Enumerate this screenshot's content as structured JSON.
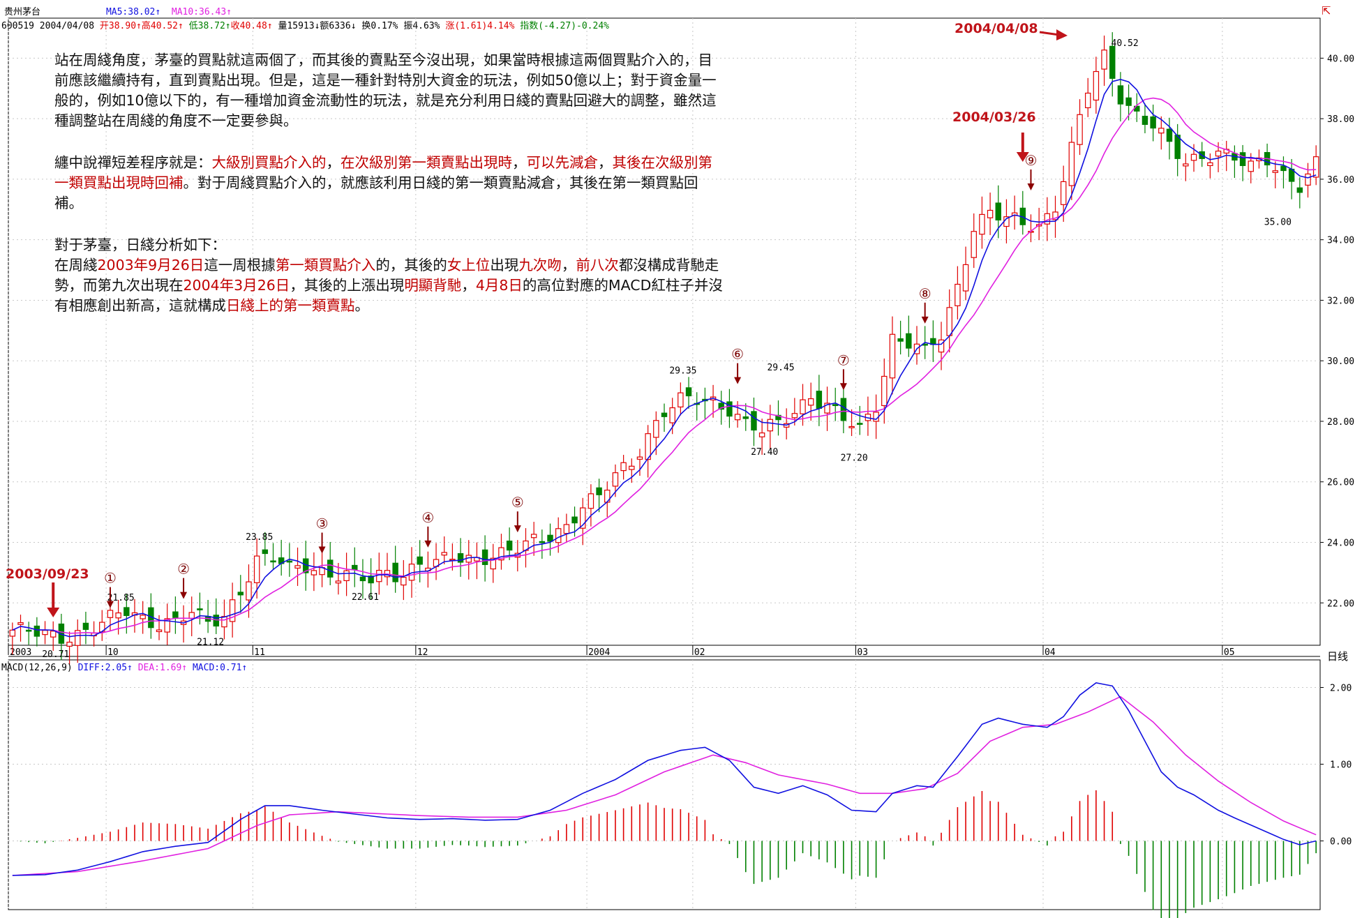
{
  "header": {
    "name": "贵州茅台",
    "ma5": "MA5:38.02↑",
    "ma10": "MA10:36.43↑",
    "code": "600519",
    "date": "2004/04/08",
    "open": "开38.90↑",
    "high": "高40.52↑",
    "low": "低38.72↑",
    "close": "收40.48↑",
    "vol": "量15913↓",
    "amount": "额6336↓",
    "turnover": "换0.17%",
    "amplitude": "振4.63%",
    "change": "涨(1.61)4.14%",
    "index": "指数(-4.27)-0.24%"
  },
  "macd_header": {
    "name": "MACD(12,26,9)",
    "diff": "DIFF:2.05↑",
    "dea": "DEA:1.69↑",
    "macd": "MACD:0.71↑"
  },
  "period_label": "日线",
  "notes": {
    "p1": "站在周綫角度，茅臺的買點就這兩個了，而其後的賣點至今沒出現，如果當時根據這兩個買點介入的，目前應該繼續持有，直到賣點出現。但是，這是一種針對特別大資金的玩法，例如50億以上；對于資金量一般的，例如10億以下的，有一種增加資金流動性的玩法，就是充分利用日綫的賣點回避大的調整，雖然這種調整站在周綫的角度不一定要參與。",
    "p2a": "纏中說禪短差程序就是：",
    "p2b": "大級別買點介入的",
    "p2c": "，",
    "p2d": "在次級別第一類賣點出現時",
    "p2e": "，",
    "p2f": "可以先減倉",
    "p2g": "，",
    "p2h": "其後在次級別第一類買點出現時回補",
    "p2i": "。對于周綫買點介入的，就應該利用日綫的第一類賣點減倉，其後在第一類買點回補。",
    "p3": "對于茅臺，日綫分析如下：",
    "p4a": "在周綫",
    "p4b": "2003年9月26日",
    "p4c": "這一周根據",
    "p4d": "第一類買點介入",
    "p4e": "的，其後的",
    "p4f": "女上位",
    "p4g": "出現",
    "p4h": "九次吻",
    "p4i": "，",
    "p4j": "前八次",
    "p4k": "都沒構成背馳走勢，而第九次出現在",
    "p4l": "2004年3月26日",
    "p4m": "，其後的上漲出現",
    "p4n": "明顯背馳",
    "p4o": "，",
    "p4p": "4月8日",
    "p4q": "的高位對應的MACD紅柱子并沒有相應創出新高，這就構成",
    "p4r": "日綫上的第一類賣點",
    "p4s": "。"
  },
  "annotations": {
    "d20030923": "2003/09/23",
    "d20040326": "2004/03/26",
    "d20040408": "2004/04/08"
  },
  "colors": {
    "up": "#e00000",
    "down": "#008000",
    "ma5": "#1010e0",
    "ma10": "#e020e0",
    "annotation": "#c0141a",
    "grid": "#c8c8c8"
  },
  "chart_data": [
    {
      "type": "candlestick",
      "y_ticks": [
        "40.00",
        "38.00",
        "36.00",
        "34.00",
        "32.00",
        "30.00",
        "28.00",
        "26.00",
        "24.00",
        "22.00"
      ],
      "ylim": [
        20.6,
        41.0
      ],
      "x_labels": [
        {
          "label": "2003",
          "index": 0
        },
        {
          "label": "10",
          "index": 12
        },
        {
          "label": "11",
          "index": 30
        },
        {
          "label": "12",
          "index": 50
        },
        {
          "label": "2004",
          "index": 71
        },
        {
          "label": "02",
          "index": 84
        },
        {
          "label": "03",
          "index": 104
        },
        {
          "label": "04",
          "index": 127
        },
        {
          "label": "05",
          "index": 149
        }
      ],
      "price_labels": [
        {
          "text": "20.71",
          "index": 5,
          "value": 20.71,
          "pos": "below"
        },
        {
          "text": "21.85",
          "index": 13,
          "value": 21.85,
          "pos": "above"
        },
        {
          "text": "21.12",
          "index": 24,
          "value": 21.12,
          "pos": "below"
        },
        {
          "text": "23.85",
          "index": 30,
          "value": 23.85,
          "pos": "above"
        },
        {
          "text": "22.61",
          "index": 43,
          "value": 22.61,
          "pos": "below"
        },
        {
          "text": "29.35",
          "index": 82,
          "value": 29.35,
          "pos": "above"
        },
        {
          "text": "27.40",
          "index": 92,
          "value": 27.4,
          "pos": "below"
        },
        {
          "text": "29.45",
          "index": 94,
          "value": 29.45,
          "pos": "above"
        },
        {
          "text": "27.20",
          "index": 103,
          "value": 27.2,
          "pos": "below"
        },
        {
          "text": "40.52",
          "index": 134,
          "value": 40.52,
          "pos": "right"
        },
        {
          "text": "35.00",
          "index": 155,
          "value": 35.0,
          "pos": "below"
        }
      ],
      "kisses": [
        {
          "label": "①",
          "index": 12,
          "value": 21.6
        },
        {
          "label": "②",
          "index": 21,
          "value": 21.9
        },
        {
          "label": "③",
          "index": 38,
          "value": 23.4
        },
        {
          "label": "④",
          "index": 51,
          "value": 23.6
        },
        {
          "label": "⑤",
          "index": 62,
          "value": 24.1
        },
        {
          "label": "⑥",
          "index": 89,
          "value": 29.0
        },
        {
          "label": "⑦",
          "index": 102,
          "value": 28.8
        },
        {
          "label": "⑧",
          "index": 112,
          "value": 31.0
        },
        {
          "label": "⑨",
          "index": 125,
          "value": 35.4
        }
      ],
      "keypoints": [
        [
          0,
          21.1
        ],
        [
          4,
          20.9
        ],
        [
          6,
          20.9
        ],
        [
          10,
          21.2
        ],
        [
          12,
          21.4
        ],
        [
          14,
          21.7
        ],
        [
          16,
          21.5
        ],
        [
          18,
          21.4
        ],
        [
          20,
          21.4
        ],
        [
          22,
          21.6
        ],
        [
          24,
          21.3
        ],
        [
          26,
          21.6
        ],
        [
          28,
          22.5
        ],
        [
          30,
          23.4
        ],
        [
          32,
          23.4
        ],
        [
          34,
          23.1
        ],
        [
          36,
          23.3
        ],
        [
          38,
          23.1
        ],
        [
          40,
          22.9
        ],
        [
          42,
          22.8
        ],
        [
          44,
          22.7
        ],
        [
          46,
          23.1
        ],
        [
          48,
          23.0
        ],
        [
          50,
          23.3
        ],
        [
          52,
          23.2
        ],
        [
          54,
          23.5
        ],
        [
          56,
          23.5
        ],
        [
          58,
          23.6
        ],
        [
          60,
          23.6
        ],
        [
          62,
          23.7
        ],
        [
          64,
          24.0
        ],
        [
          66,
          24.3
        ],
        [
          68,
          24.6
        ],
        [
          70,
          25.2
        ],
        [
          72,
          25.4
        ],
        [
          74,
          26.2
        ],
        [
          76,
          26.7
        ],
        [
          78,
          27.6
        ],
        [
          80,
          28.3
        ],
        [
          82,
          28.6
        ],
        [
          84,
          28.7
        ],
        [
          86,
          28.7
        ],
        [
          88,
          28.5
        ],
        [
          90,
          27.9
        ],
        [
          92,
          27.6
        ],
        [
          94,
          27.9
        ],
        [
          96,
          28.4
        ],
        [
          98,
          28.9
        ],
        [
          100,
          28.5
        ],
        [
          102,
          28.0
        ],
        [
          104,
          27.7
        ],
        [
          106,
          28.6
        ],
        [
          108,
          30.8
        ],
        [
          110,
          30.6
        ],
        [
          112,
          30.2
        ],
        [
          114,
          30.8
        ],
        [
          116,
          32.5
        ],
        [
          118,
          34.5
        ],
        [
          120,
          34.9
        ],
        [
          122,
          34.6
        ],
        [
          124,
          34.5
        ],
        [
          126,
          34.5
        ],
        [
          128,
          35.2
        ],
        [
          130,
          37.0
        ],
        [
          132,
          38.9
        ],
        [
          134,
          40.0
        ],
        [
          136,
          38.8
        ],
        [
          138,
          38.2
        ],
        [
          140,
          37.8
        ],
        [
          142,
          37.0
        ],
        [
          144,
          36.5
        ],
        [
          146,
          36.8
        ],
        [
          148,
          37.0
        ],
        [
          150,
          36.7
        ],
        [
          152,
          36.3
        ],
        [
          154,
          36.6
        ],
        [
          156,
          36.2
        ],
        [
          158,
          35.9
        ],
        [
          160,
          36.5
        ]
      ],
      "candles_count": 161
    },
    {
      "type": "line+bar",
      "name": "MACD(12,26,9)",
      "y_ticks": [
        "2.00",
        "1.00",
        "0.00"
      ],
      "ylim": [
        -0.95,
        2.25
      ],
      "diff_keypoints": [
        [
          0,
          -0.45
        ],
        [
          4,
          -0.44
        ],
        [
          8,
          -0.38
        ],
        [
          12,
          -0.27
        ],
        [
          16,
          -0.14
        ],
        [
          20,
          -0.07
        ],
        [
          24,
          -0.02
        ],
        [
          28,
          0.28
        ],
        [
          31,
          0.46
        ],
        [
          34,
          0.46
        ],
        [
          38,
          0.4
        ],
        [
          42,
          0.35
        ],
        [
          46,
          0.3
        ],
        [
          50,
          0.28
        ],
        [
          54,
          0.29
        ],
        [
          58,
          0.27
        ],
        [
          62,
          0.28
        ],
        [
          66,
          0.4
        ],
        [
          70,
          0.62
        ],
        [
          74,
          0.8
        ],
        [
          78,
          1.05
        ],
        [
          82,
          1.18
        ],
        [
          85,
          1.22
        ],
        [
          88,
          1.05
        ],
        [
          91,
          0.7
        ],
        [
          94,
          0.62
        ],
        [
          97,
          0.72
        ],
        [
          100,
          0.6
        ],
        [
          103,
          0.4
        ],
        [
          106,
          0.38
        ],
        [
          108,
          0.62
        ],
        [
          111,
          0.72
        ],
        [
          113,
          0.7
        ],
        [
          116,
          1.1
        ],
        [
          119,
          1.52
        ],
        [
          121,
          1.6
        ],
        [
          124,
          1.52
        ],
        [
          127,
          1.48
        ],
        [
          129,
          1.62
        ],
        [
          131,
          1.9
        ],
        [
          133,
          2.06
        ],
        [
          135,
          2.02
        ],
        [
          137,
          1.7
        ],
        [
          139,
          1.3
        ],
        [
          141,
          0.9
        ],
        [
          143,
          0.7
        ],
        [
          145,
          0.6
        ],
        [
          148,
          0.4
        ],
        [
          150,
          0.3
        ],
        [
          153,
          0.16
        ],
        [
          156,
          0.02
        ],
        [
          158,
          -0.05
        ],
        [
          160,
          0.0
        ]
      ],
      "dea_keypoints": [
        [
          0,
          -0.45
        ],
        [
          8,
          -0.4
        ],
        [
          16,
          -0.26
        ],
        [
          24,
          -0.1
        ],
        [
          30,
          0.2
        ],
        [
          34,
          0.34
        ],
        [
          40,
          0.38
        ],
        [
          46,
          0.35
        ],
        [
          50,
          0.33
        ],
        [
          56,
          0.31
        ],
        [
          62,
          0.31
        ],
        [
          68,
          0.4
        ],
        [
          74,
          0.6
        ],
        [
          80,
          0.9
        ],
        [
          86,
          1.12
        ],
        [
          90,
          1.02
        ],
        [
          94,
          0.86
        ],
        [
          100,
          0.74
        ],
        [
          104,
          0.62
        ],
        [
          108,
          0.62
        ],
        [
          112,
          0.68
        ],
        [
          116,
          0.88
        ],
        [
          120,
          1.3
        ],
        [
          124,
          1.48
        ],
        [
          128,
          1.52
        ],
        [
          132,
          1.68
        ],
        [
          136,
          1.88
        ],
        [
          140,
          1.55
        ],
        [
          144,
          1.12
        ],
        [
          148,
          0.78
        ],
        [
          152,
          0.5
        ],
        [
          156,
          0.26
        ],
        [
          160,
          0.08
        ]
      ]
    }
  ]
}
